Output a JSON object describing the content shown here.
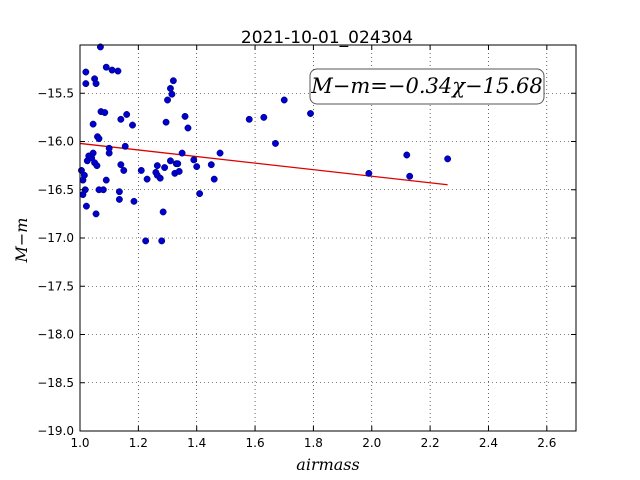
{
  "chart_data": {
    "type": "scatter",
    "title": "2021-10-01_024304",
    "xlabel": "airmass",
    "ylabel": "M−m",
    "annotation": "M−m=−0.34χ−15.68",
    "xlim": [
      1.0,
      2.7
    ],
    "ylim": [
      -19.0,
      -15.0
    ],
    "y_inverted": true,
    "grid": true,
    "xticks": [
      1.0,
      1.2,
      1.4,
      1.6,
      1.8,
      2.0,
      2.2,
      2.4,
      2.6
    ],
    "xtick_labels": [
      "1.0",
      "1.2",
      "1.4",
      "1.6",
      "1.8",
      "2.0",
      "2.2",
      "2.4",
      "2.6"
    ],
    "yticks": [
      -15.5,
      -16.0,
      -16.5,
      -17.0,
      -17.5,
      -18.0,
      -18.5,
      -19.0
    ],
    "ytick_labels": [
      "−15.5",
      "−16.0",
      "−16.5",
      "−17.0",
      "−17.5",
      "−18.0",
      "−18.5",
      "−19.0"
    ],
    "point_color": "#0000cc",
    "fit_color": "#dd0000",
    "fit_line": {
      "slope": -0.34,
      "intercept": -15.68,
      "x_range": [
        1.0,
        2.26
      ]
    },
    "points": [
      [
        1.005,
        -16.3
      ],
      [
        1.01,
        -16.4
      ],
      [
        1.01,
        -16.55
      ],
      [
        1.015,
        -16.35
      ],
      [
        1.018,
        -16.5
      ],
      [
        1.02,
        -15.4
      ],
      [
        1.02,
        -15.28
      ],
      [
        1.022,
        -16.67
      ],
      [
        1.025,
        -16.2
      ],
      [
        1.03,
        -16.15
      ],
      [
        1.04,
        -16.17
      ],
      [
        1.045,
        -16.12
      ],
      [
        1.045,
        -15.82
      ],
      [
        1.05,
        -16.22
      ],
      [
        1.05,
        -15.35
      ],
      [
        1.055,
        -15.4
      ],
      [
        1.055,
        -16.75
      ],
      [
        1.058,
        -16.25
      ],
      [
        1.06,
        -15.95
      ],
      [
        1.065,
        -15.97
      ],
      [
        1.065,
        -16.5
      ],
      [
        1.07,
        -15.02
      ],
      [
        1.072,
        -15.69
      ],
      [
        1.08,
        -16.5
      ],
      [
        1.085,
        -15.7
      ],
      [
        1.09,
        -15.23
      ],
      [
        1.09,
        -16.4
      ],
      [
        1.1,
        -16.07
      ],
      [
        1.1,
        -16.12
      ],
      [
        1.11,
        -15.26
      ],
      [
        1.13,
        -15.27
      ],
      [
        1.135,
        -16.52
      ],
      [
        1.135,
        -16.6
      ],
      [
        1.14,
        -16.24
      ],
      [
        1.14,
        -15.77
      ],
      [
        1.15,
        -16.3
      ],
      [
        1.155,
        -16.05
      ],
      [
        1.16,
        -15.72
      ],
      [
        1.18,
        -15.83
      ],
      [
        1.185,
        -16.62
      ],
      [
        1.21,
        -16.3
      ],
      [
        1.225,
        -17.03
      ],
      [
        1.23,
        -16.39
      ],
      [
        1.26,
        -16.32
      ],
      [
        1.265,
        -16.25
      ],
      [
        1.265,
        -16.35
      ],
      [
        1.275,
        -16.38
      ],
      [
        1.28,
        -17.03
      ],
      [
        1.285,
        -16.73
      ],
      [
        1.29,
        -16.27
      ],
      [
        1.295,
        -15.8
      ],
      [
        1.3,
        -15.57
      ],
      [
        1.31,
        -15.45
      ],
      [
        1.31,
        -16.2
      ],
      [
        1.315,
        -15.51
      ],
      [
        1.32,
        -15.37
      ],
      [
        1.325,
        -16.33
      ],
      [
        1.33,
        -16.23
      ],
      [
        1.335,
        -16.23
      ],
      [
        1.34,
        -16.31
      ],
      [
        1.35,
        -16.12
      ],
      [
        1.36,
        -15.74
      ],
      [
        1.37,
        -15.86
      ],
      [
        1.39,
        -16.19
      ],
      [
        1.4,
        -16.26
      ],
      [
        1.41,
        -16.54
      ],
      [
        1.45,
        -16.24
      ],
      [
        1.46,
        -16.39
      ],
      [
        1.48,
        -16.12
      ],
      [
        1.58,
        -15.77
      ],
      [
        1.63,
        -15.75
      ],
      [
        1.67,
        -16.02
      ],
      [
        1.7,
        -15.57
      ],
      [
        1.79,
        -15.71
      ],
      [
        1.99,
        -16.33
      ],
      [
        2.12,
        -16.14
      ],
      [
        2.13,
        -16.36
      ],
      [
        2.26,
        -16.18
      ]
    ]
  }
}
